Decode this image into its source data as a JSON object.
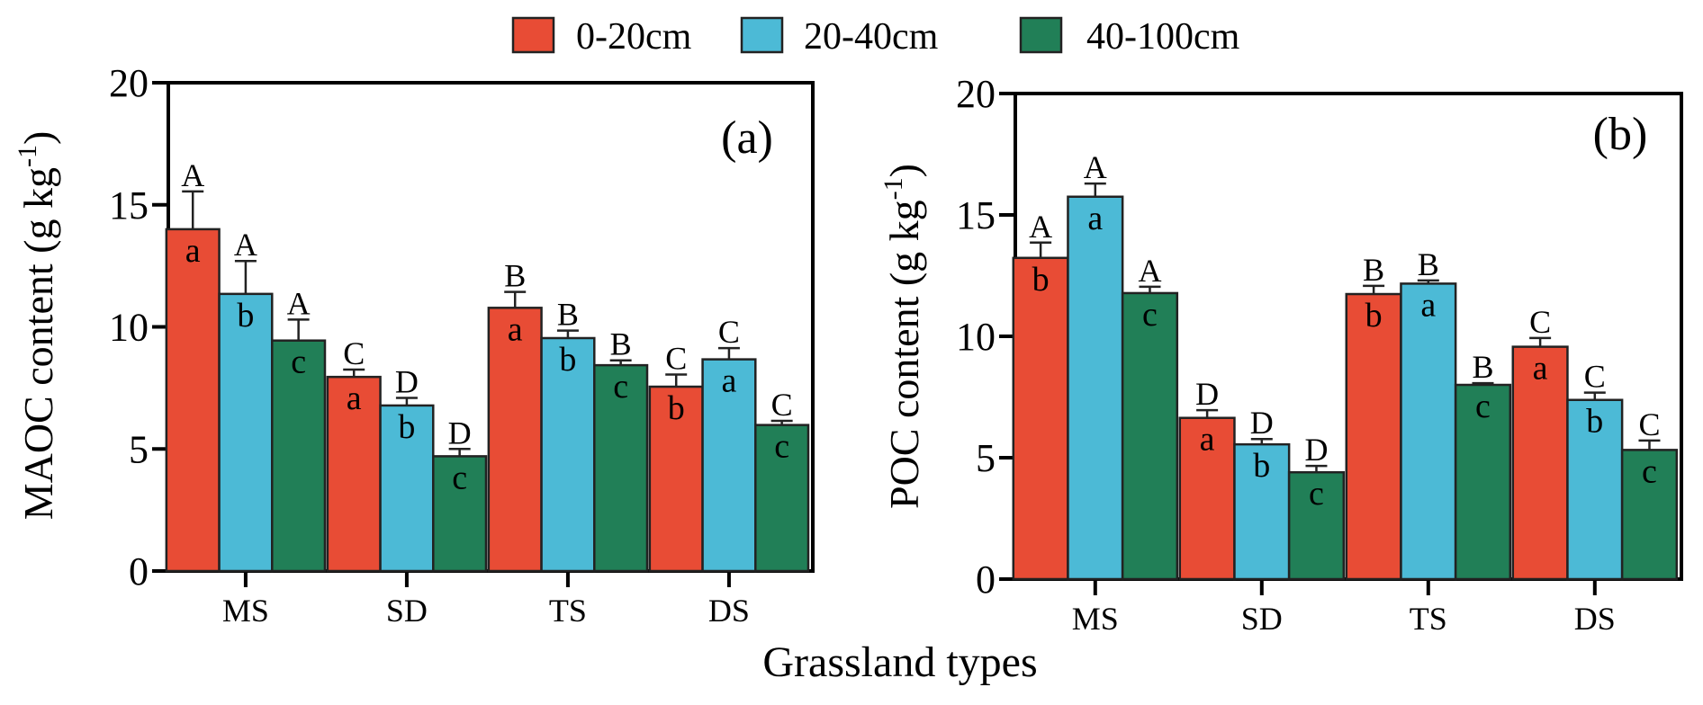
{
  "chart_data": [
    {
      "type": "bar",
      "panel_tag": "(a)",
      "ylabel": "MAOC content (g kg",
      "ylabel_sup": "-1",
      "ylabel_close": ")",
      "ylim": [
        0,
        20
      ],
      "yticks": [
        0,
        5,
        10,
        15,
        20
      ],
      "categories": [
        "MS",
        "SD",
        "TS",
        "DS"
      ],
      "series": [
        {
          "name": "0-20cm",
          "values": [
            14.0,
            7.95,
            10.78,
            7.55
          ],
          "errors": [
            1.55,
            0.3,
            0.65,
            0.5
          ],
          "upper_letters": [
            "A",
            "C",
            "B",
            "C"
          ],
          "lower_letters": [
            "a",
            "a",
            "a",
            "b"
          ]
        },
        {
          "name": "20-40cm",
          "values": [
            11.35,
            6.78,
            9.54,
            8.67
          ],
          "errors": [
            1.35,
            0.31,
            0.31,
            0.46
          ],
          "upper_letters": [
            "A",
            "D",
            "B",
            "C"
          ],
          "lower_letters": [
            "b",
            "b",
            "b",
            "a"
          ]
        },
        {
          "name": "40-100cm",
          "values": [
            9.44,
            4.7,
            8.43,
            5.98
          ],
          "errors": [
            0.86,
            0.3,
            0.2,
            0.17
          ],
          "upper_letters": [
            "A",
            "D",
            "B",
            "C"
          ],
          "lower_letters": [
            "c",
            "c",
            "c",
            "c"
          ]
        }
      ]
    },
    {
      "type": "bar",
      "panel_tag": "(b)",
      "ylabel": "POC content (g kg",
      "ylabel_sup": "-1",
      "ylabel_close": ")",
      "ylim": [
        0,
        20
      ],
      "yticks": [
        0,
        5,
        10,
        15,
        20
      ],
      "categories": [
        "MS",
        "SD",
        "TS",
        "DS"
      ],
      "series": [
        {
          "name": "0-20cm",
          "values": [
            13.23,
            6.64,
            11.74,
            9.57
          ],
          "errors": [
            0.63,
            0.32,
            0.34,
            0.36
          ],
          "upper_letters": [
            "A",
            "D",
            "B",
            "C"
          ],
          "lower_letters": [
            "b",
            "a",
            "b",
            "a"
          ]
        },
        {
          "name": "20-40cm",
          "values": [
            15.75,
            5.55,
            12.17,
            7.38
          ],
          "errors": [
            0.54,
            0.22,
            0.13,
            0.3
          ],
          "upper_letters": [
            "A",
            "D",
            "B",
            "C"
          ],
          "lower_letters": [
            "a",
            "b",
            "a",
            "b"
          ]
        },
        {
          "name": "40-100cm",
          "values": [
            11.78,
            4.4,
            8.0,
            5.32
          ],
          "errors": [
            0.26,
            0.26,
            0.07,
            0.39
          ],
          "upper_letters": [
            "A",
            "D",
            "B",
            "C"
          ],
          "lower_letters": [
            "c",
            "c",
            "c",
            "c"
          ]
        }
      ]
    }
  ],
  "legend": {
    "position": "top-center",
    "items": [
      {
        "label": "0-20cm",
        "color": "#e84c35"
      },
      {
        "label": "20-40cm",
        "color": "#4cbad6"
      },
      {
        "label": "40-100cm",
        "color": "#217f57"
      }
    ]
  },
  "shared_xlabel": "Grassland types"
}
